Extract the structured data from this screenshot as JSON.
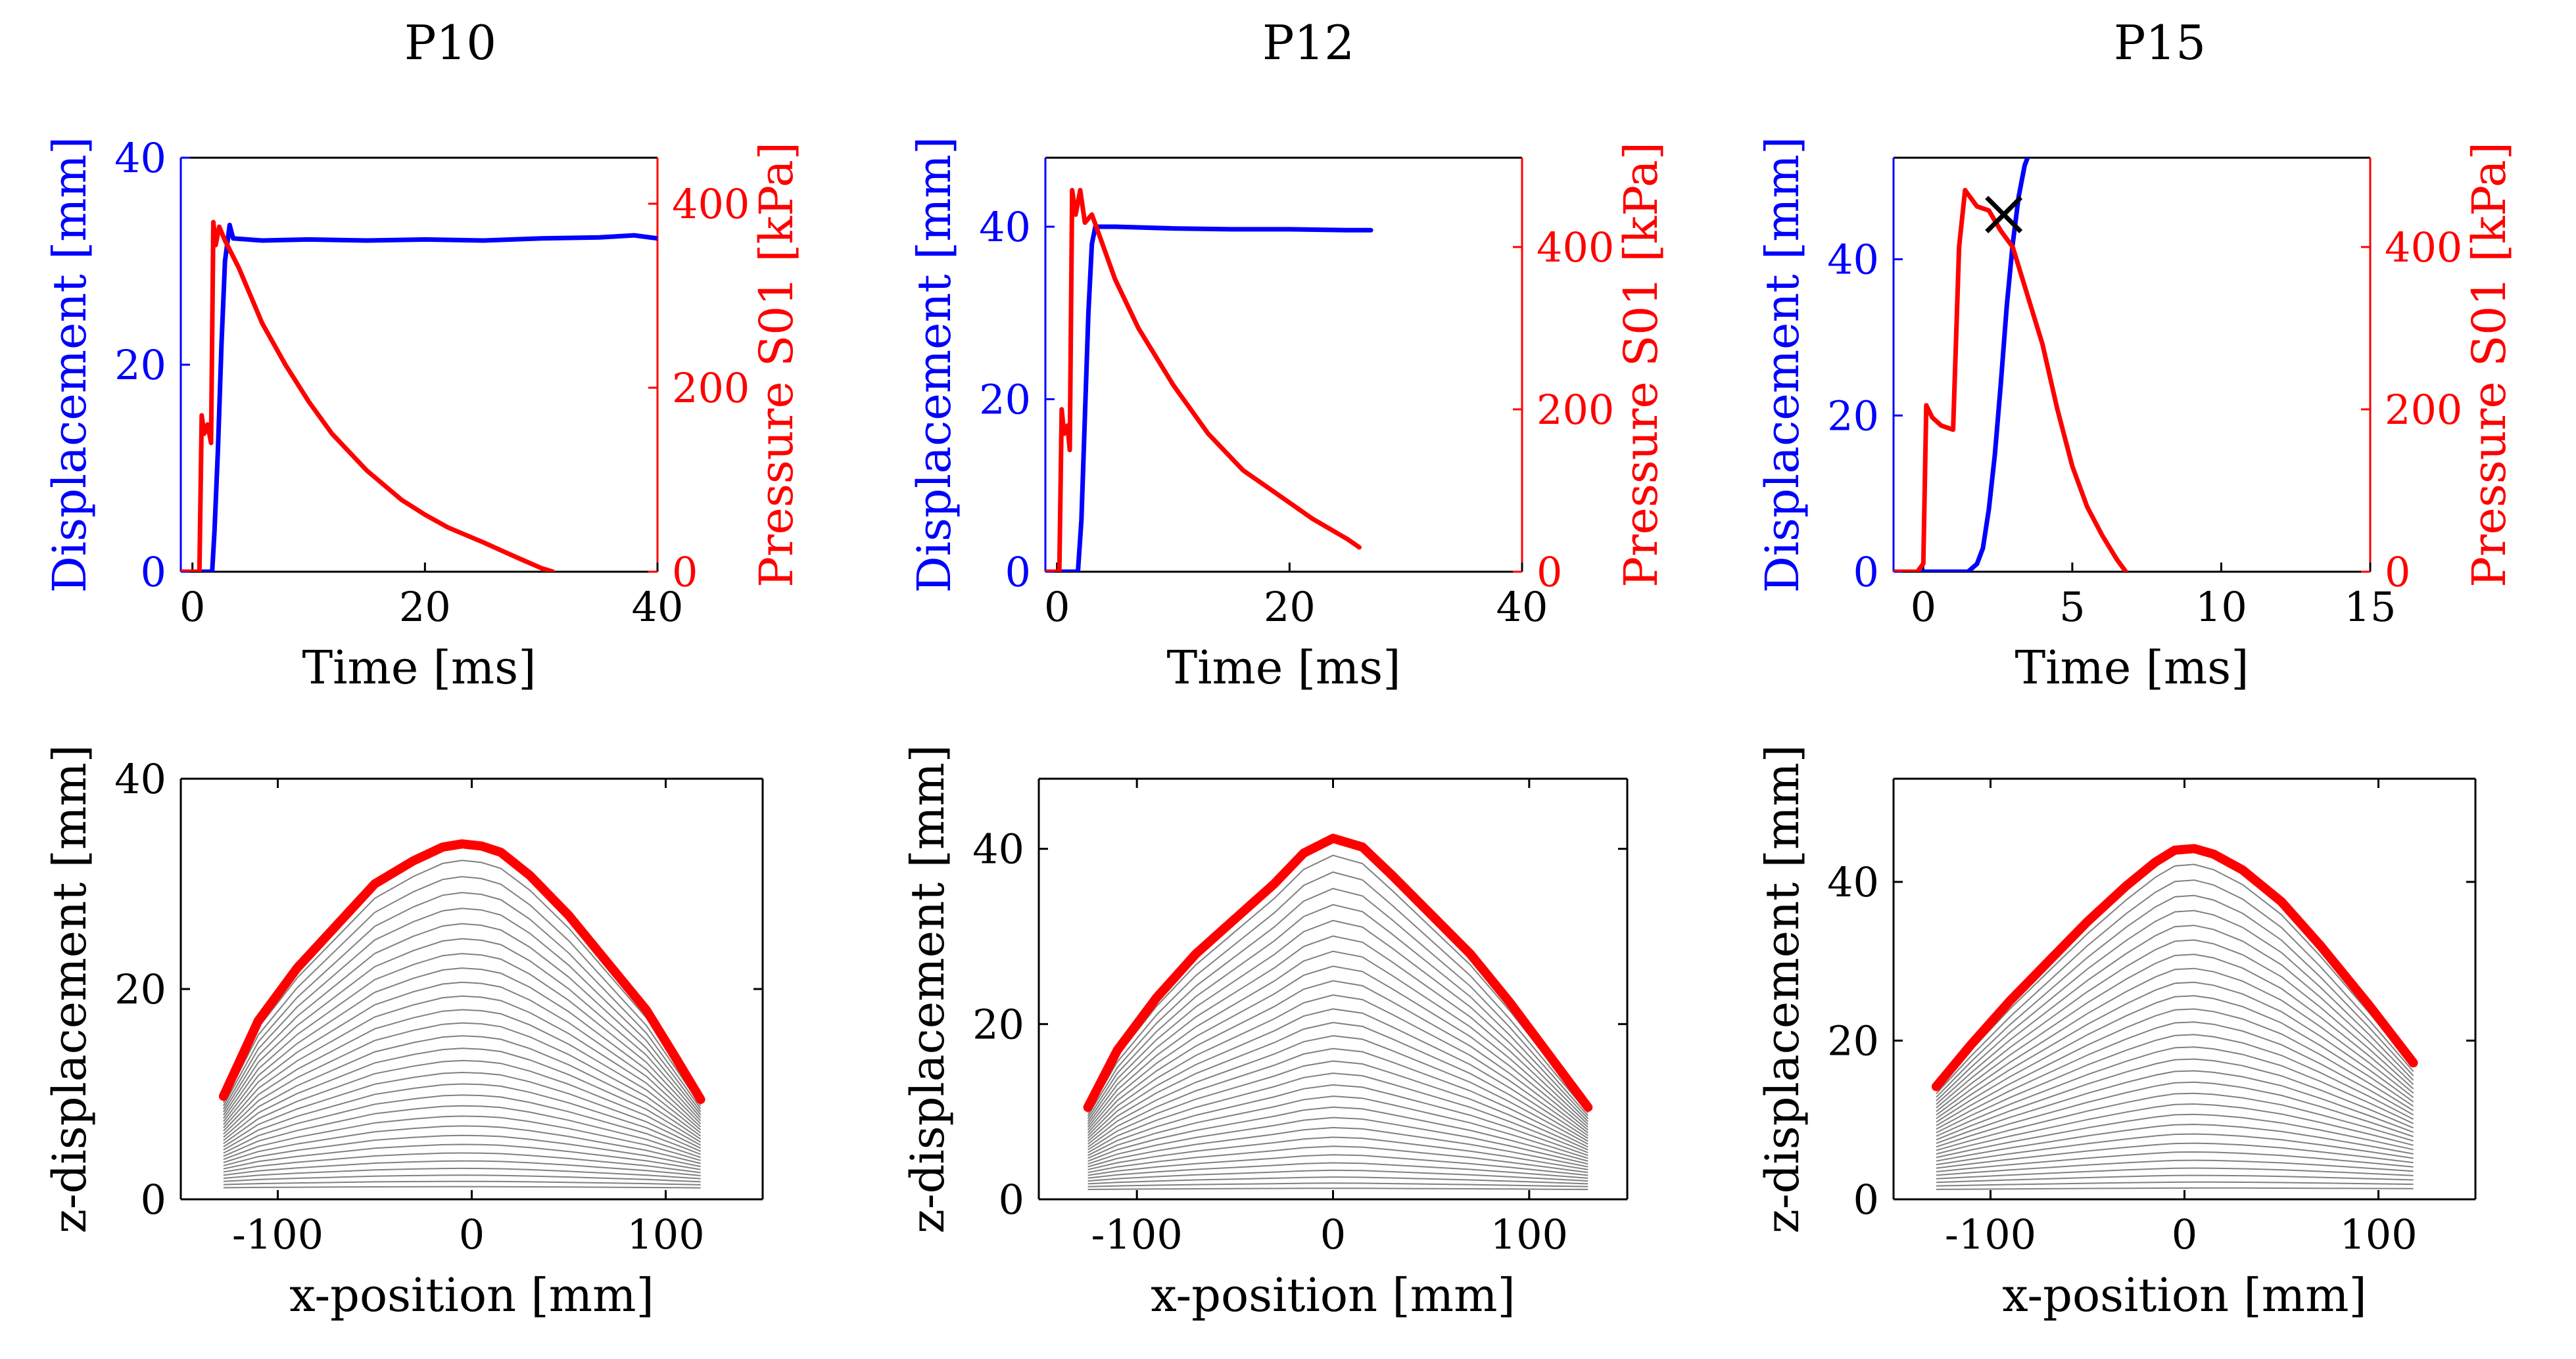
{
  "figure": {
    "colors": {
      "displacement": "#0000ff",
      "pressure": "#ff0000",
      "axes": "#000000",
      "profile": "#808080",
      "final_profile": "#ff0000",
      "marker": "#000000"
    }
  },
  "chart_data": [
    {
      "id": "p10-time",
      "type": "line",
      "title": "P10",
      "xlabel": "Time [ms]",
      "ylabel": "Displacement [mm]",
      "ylabel_right": "Pressure S01 [kPa]",
      "xlim": [
        -1,
        40
      ],
      "ylim": [
        0,
        40
      ],
      "ylim_right": [
        0,
        450
      ],
      "xticks": [
        0,
        20,
        40
      ],
      "yticks": [
        0,
        20,
        40
      ],
      "yticks_right": [
        0,
        200,
        400
      ],
      "series": [
        {
          "name": "Displacement",
          "axis": "left",
          "color": "#0000ff",
          "x": [
            -1,
            1.7,
            1.9,
            2.2,
            2.5,
            2.8,
            3.2,
            3.5,
            6,
            10,
            15,
            20,
            25,
            30,
            35,
            38,
            40
          ],
          "y": [
            0,
            0,
            4,
            12,
            22,
            30,
            33.5,
            32.2,
            32,
            32.1,
            32,
            32.1,
            32,
            32.2,
            32.3,
            32.5,
            32.2
          ]
        },
        {
          "name": "Pressure S01",
          "axis": "right",
          "color": "#ff0000",
          "x": [
            -1,
            0.6,
            0.8,
            1,
            1.3,
            1.6,
            1.8,
            2,
            2.3,
            2.8,
            3.2,
            4,
            6,
            8,
            10,
            12,
            15,
            18,
            20,
            22,
            25,
            28,
            30,
            31
          ],
          "y": [
            0,
            0,
            170,
            150,
            160,
            140,
            380,
            355,
            375,
            360,
            350,
            330,
            270,
            225,
            185,
            150,
            110,
            78,
            62,
            48,
            32,
            15,
            4,
            0
          ]
        }
      ]
    },
    {
      "id": "p12-time",
      "type": "line",
      "title": "P12",
      "xlabel": "Time [ms]",
      "ylabel": "Displacement [mm]",
      "ylabel_right": "Pressure S01 [kPa]",
      "xlim": [
        -1,
        40
      ],
      "ylim": [
        0,
        48
      ],
      "ylim_right": [
        0,
        510
      ],
      "xticks": [
        0,
        20,
        40
      ],
      "yticks": [
        0,
        20,
        40
      ],
      "yticks_right": [
        0,
        200,
        400
      ],
      "series": [
        {
          "name": "Displacement",
          "axis": "left",
          "color": "#0000ff",
          "x": [
            -1,
            1.8,
            2.1,
            2.4,
            2.7,
            3,
            3.3,
            5,
            10,
            15,
            20,
            25,
            27
          ],
          "y": [
            0,
            0,
            6,
            18,
            30,
            38,
            40,
            40,
            39.8,
            39.7,
            39.7,
            39.6,
            39.6
          ]
        },
        {
          "name": "Pressure S01",
          "axis": "right",
          "color": "#ff0000",
          "x": [
            -1,
            0.2,
            0.4,
            0.6,
            0.9,
            1.1,
            1.3,
            1.6,
            2,
            2.4,
            3,
            3.5,
            5,
            7,
            10,
            13,
            16,
            19,
            22,
            25,
            26
          ],
          "y": [
            0,
            0,
            200,
            170,
            180,
            150,
            470,
            440,
            470,
            430,
            440,
            420,
            360,
            300,
            230,
            170,
            125,
            95,
            65,
            40,
            30
          ]
        }
      ]
    },
    {
      "id": "p15-time",
      "type": "line",
      "title": "P15",
      "xlabel": "Time [ms]",
      "ylabel": "Displacement [mm]",
      "ylabel_right": "Pressure S01 [kPa]",
      "xlim": [
        -1,
        15
      ],
      "ylim": [
        0,
        53
      ],
      "ylim_right": [
        0,
        510
      ],
      "xticks": [
        0,
        5,
        10,
        15
      ],
      "yticks": [
        0,
        20,
        40
      ],
      "yticks_right": [
        0,
        200,
        400
      ],
      "series": [
        {
          "name": "Displacement",
          "axis": "left",
          "color": "#0000ff",
          "x": [
            -1,
            1.5,
            1.8,
            2,
            2.2,
            2.4,
            2.6,
            2.8,
            3,
            3.2,
            3.4,
            3.5
          ],
          "y": [
            0,
            0,
            1,
            3,
            8,
            15,
            24,
            34,
            42,
            48,
            52,
            53
          ]
        },
        {
          "name": "Pressure S01",
          "axis": "right",
          "color": "#ff0000",
          "x": [
            -1,
            -0.2,
            0,
            0.1,
            0.3,
            0.6,
            1,
            1.2,
            1.4,
            1.8,
            2.2,
            2.6,
            3,
            3.5,
            4,
            4.5,
            5,
            5.5,
            6,
            6.5,
            6.8
          ],
          "y": [
            0,
            0,
            10,
            205,
            190,
            180,
            175,
            400,
            470,
            450,
            445,
            420,
            400,
            340,
            280,
            200,
            130,
            80,
            45,
            15,
            0
          ]
        }
      ],
      "marker": {
        "symbol": "x",
        "axis": "right",
        "x": 2.7,
        "y": 440,
        "color": "#000000"
      }
    },
    {
      "id": "p10-profile",
      "type": "line",
      "xlabel": "x-position [mm]",
      "ylabel": "z-displacement [mm]",
      "xlim": [
        -150,
        150
      ],
      "ylim": [
        0,
        40
      ],
      "xticks": [
        -100,
        0,
        100
      ],
      "yticks": [
        0,
        20,
        40
      ],
      "profiles": {
        "count": 30,
        "color": "#808080",
        "edge_start": 0.8
      },
      "final_profile": {
        "color": "#ff0000",
        "x": [
          -128,
          -110,
          -90,
          -70,
          -50,
          -30,
          -15,
          -5,
          5,
          15,
          30,
          50,
          70,
          90,
          105,
          118
        ],
        "z": [
          9.8,
          17,
          22,
          26,
          30,
          32.2,
          33.5,
          33.8,
          33.6,
          33,
          30.8,
          27,
          22.5,
          18,
          13.5,
          9.5
        ]
      }
    },
    {
      "id": "p12-profile",
      "type": "line",
      "xlabel": "x-position [mm]",
      "ylabel": "z-displacement [mm]",
      "xlim": [
        -150,
        150
      ],
      "ylim": [
        0,
        48
      ],
      "xticks": [
        -100,
        0,
        100
      ],
      "yticks": [
        0,
        20,
        40
      ],
      "profiles": {
        "count": 30,
        "color": "#808080",
        "edge_start": 0.8
      },
      "final_profile": {
        "color": "#ff0000",
        "x": [
          -125,
          -110,
          -90,
          -70,
          -50,
          -30,
          -15,
          0,
          15,
          30,
          50,
          70,
          90,
          110,
          130
        ],
        "z": [
          10.5,
          17,
          23,
          28,
          32,
          36,
          39.5,
          41.2,
          40.2,
          37,
          32.5,
          28,
          22.5,
          16.5,
          10.5
        ]
      }
    },
    {
      "id": "p15-profile",
      "type": "line",
      "xlabel": "x-position [mm]",
      "ylabel": "z-displacement [mm]",
      "xlim": [
        -150,
        150
      ],
      "ylim": [
        0,
        53
      ],
      "xticks": [
        -100,
        0,
        100
      ],
      "yticks": [
        0,
        20,
        40
      ],
      "profiles": {
        "count": 30,
        "color": "#808080",
        "edge_start": 0.8
      },
      "final_profile": {
        "color": "#ff0000",
        "x": [
          -128,
          -110,
          -90,
          -70,
          -50,
          -30,
          -15,
          -5,
          5,
          15,
          30,
          50,
          70,
          95,
          118
        ],
        "z": [
          14.2,
          19.5,
          25,
          30,
          35,
          39.5,
          42.5,
          44,
          44.2,
          43.5,
          41.5,
          37.5,
          32,
          24.5,
          17.2
        ]
      }
    }
  ]
}
